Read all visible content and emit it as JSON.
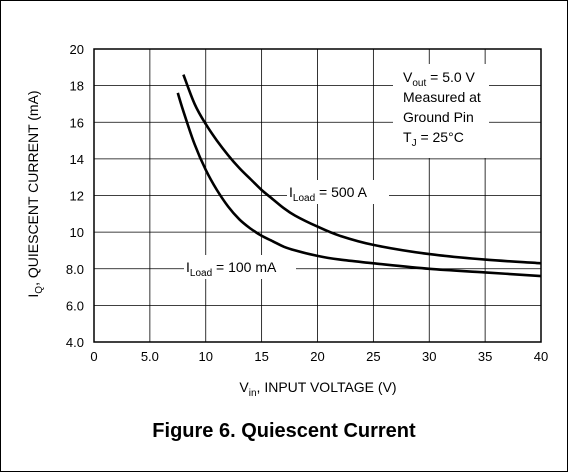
{
  "caption": "Figure 6. Quiescent Current",
  "chart_data": {
    "type": "line",
    "title": "",
    "xlabel": {
      "main": "V",
      "sub": "in",
      "rest": ", INPUT VOLTAGE (V)"
    },
    "ylabel": {
      "main": "I",
      "sub": "Q",
      "rest": ", QUIESCENT CURRENT (mA)"
    },
    "xlim": [
      0,
      40
    ],
    "ylim": [
      4.0,
      20
    ],
    "xticks": [
      0,
      5,
      10,
      15,
      20,
      25,
      30,
      35,
      40
    ],
    "xtick_labels": [
      "0",
      "5.0",
      "10",
      "15",
      "20",
      "25",
      "30",
      "35",
      "40"
    ],
    "yticks": [
      4,
      6,
      8,
      10,
      12,
      14,
      16,
      18,
      20
    ],
    "ytick_labels": [
      "4.0",
      "6.0",
      "8.0",
      "10",
      "12",
      "14",
      "16",
      "18",
      "20"
    ],
    "grid": true,
    "series": [
      {
        "name": {
          "main": "I",
          "sub": "Load",
          "rest": " = 500 A"
        },
        "x": [
          8.0,
          9,
          10,
          11,
          12,
          13,
          14,
          15,
          16,
          17,
          18,
          20,
          22,
          25,
          30,
          35,
          40
        ],
        "y": [
          18.6,
          17.0,
          15.9,
          15.0,
          14.2,
          13.5,
          12.9,
          12.3,
          11.8,
          11.3,
          10.9,
          10.3,
          9.8,
          9.3,
          8.8,
          8.5,
          8.3
        ]
      },
      {
        "name": {
          "main": "I",
          "sub": "Load",
          "rest": " = 100 mA"
        },
        "x": [
          7.5,
          8,
          9,
          10,
          11,
          12,
          13,
          14,
          15,
          16,
          17,
          18,
          20,
          22,
          25,
          30,
          35,
          40
        ],
        "y": [
          17.6,
          16.6,
          14.8,
          13.4,
          12.3,
          11.4,
          10.7,
          10.2,
          9.8,
          9.5,
          9.2,
          9.0,
          8.7,
          8.5,
          8.3,
          8.0,
          7.8,
          7.6
        ]
      }
    ],
    "conditions": [
      {
        "main": "V",
        "sub": "out",
        "rest": " = 5.0 V"
      },
      {
        "main": "Measured at",
        "sub": "",
        "rest": ""
      },
      {
        "main": "Ground Pin",
        "sub": "",
        "rest": ""
      },
      {
        "main": "T",
        "sub": "J",
        "rest": " = 25°C"
      }
    ]
  }
}
